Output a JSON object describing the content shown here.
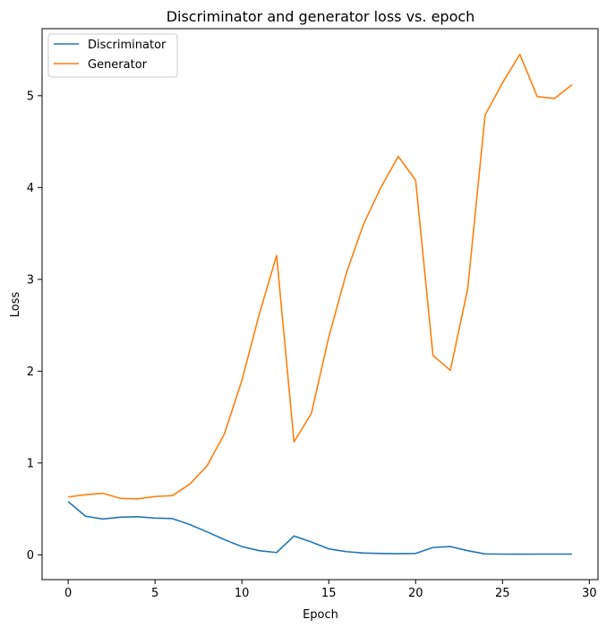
{
  "chart_data": {
    "type": "line",
    "title": "Discriminator and generator loss vs. epoch",
    "xlabel": "Epoch",
    "ylabel": "Loss",
    "xlim": [
      -1.5,
      30.5
    ],
    "ylim": [
      -0.27,
      5.73
    ],
    "xticks": [
      0,
      5,
      10,
      15,
      20,
      25,
      30
    ],
    "yticks": [
      0,
      1,
      2,
      3,
      4,
      5
    ],
    "grid": false,
    "legend_position": "top-left",
    "x": [
      0,
      1,
      2,
      3,
      4,
      5,
      6,
      7,
      8,
      9,
      10,
      11,
      12,
      13,
      14,
      15,
      16,
      17,
      18,
      19,
      20,
      21,
      22,
      23,
      24,
      25,
      26,
      27,
      28,
      29
    ],
    "series": [
      {
        "name": "Discriminator",
        "color": "#1f77b4",
        "values": [
          0.58,
          0.42,
          0.39,
          0.41,
          0.415,
          0.4,
          0.395,
          0.33,
          0.25,
          0.165,
          0.09,
          0.045,
          0.025,
          0.205,
          0.14,
          0.065,
          0.035,
          0.02,
          0.015,
          0.012,
          0.015,
          0.08,
          0.09,
          0.045,
          0.01,
          0.008,
          0.007,
          0.008,
          0.008,
          0.008
        ]
      },
      {
        "name": "Generator",
        "color": "#ff7f0e",
        "values": [
          0.63,
          0.655,
          0.67,
          0.615,
          0.61,
          0.635,
          0.645,
          0.77,
          0.97,
          1.32,
          1.9,
          2.62,
          3.26,
          1.23,
          1.54,
          2.37,
          3.06,
          3.6,
          4.0,
          4.34,
          4.08,
          2.17,
          2.01,
          2.9,
          4.79,
          5.14,
          5.45,
          4.99,
          4.97,
          5.12
        ]
      }
    ]
  }
}
